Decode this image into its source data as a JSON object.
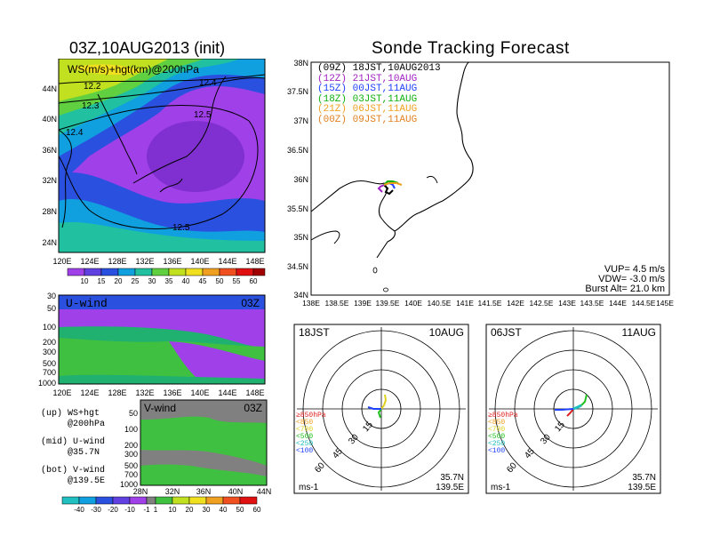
{
  "left": {
    "title": "03Z,10AUG2013 (init)",
    "ws_panel": {
      "label": "WS(m/s)+hgt(km)@200hPa",
      "lat_ticks": [
        "44N",
        "40N",
        "36N",
        "32N",
        "28N",
        "24N"
      ],
      "lon_ticks": [
        "120E",
        "124E",
        "128E",
        "132E",
        "136E",
        "140E",
        "144E",
        "148E"
      ],
      "contours": [
        "12.2",
        "12.3",
        "12.4",
        "12.4",
        "12.5",
        "12.5"
      ],
      "colorbar": [
        "10",
        "15",
        "20",
        "25",
        "30",
        "35",
        "40",
        "45",
        "50",
        "55",
        "60"
      ]
    },
    "u_panel": {
      "label": "U-wind",
      "time": "03Z",
      "p_ticks": [
        "30",
        "50",
        "100",
        "200",
        "300",
        "500",
        "700",
        "1000"
      ],
      "lon_ticks": [
        "120E",
        "124E",
        "128E",
        "132E",
        "136E",
        "140E",
        "144E",
        "148E"
      ]
    },
    "v_panel": {
      "label": "V-wind",
      "time": "03Z",
      "p_ticks": [
        "50",
        "100",
        "200",
        "300",
        "500",
        "700",
        "1000"
      ],
      "lat_ticks": [
        "28N",
        "32N",
        "36N",
        "40N",
        "44N"
      ]
    },
    "notes": [
      {
        "a": "(up)  WS+hgt",
        "b": "@200hPa"
      },
      {
        "a": "(mid) U-wind",
        "b": "@35.7N"
      },
      {
        "a": "(bot) V-wind",
        "b": "@139.5E"
      }
    ],
    "bottom_colorbar": [
      "-40",
      "-30",
      "-20",
      "-10",
      "-1",
      "1",
      "10",
      "20",
      "30",
      "40",
      "50",
      "60"
    ]
  },
  "right": {
    "title": "Sonde Tracking Forecast",
    "legend": [
      {
        "text": "(09Z)  18JST,10AUG2013",
        "color": "#000000"
      },
      {
        "text": "(12Z)  21JST,10AUG",
        "color": "#a020c0"
      },
      {
        "text": "(15Z)  00JST,11AUG",
        "color": "#2040ff"
      },
      {
        "text": "(18Z)  03JST,11AUG",
        "color": "#10b010"
      },
      {
        "text": "(21Z)  06JST,11AUG",
        "color": "#f0a020"
      },
      {
        "text": "(00Z)  09JST,11AUG",
        "color": "#e08020"
      }
    ],
    "lat_ticks": [
      "38N",
      "37.5N",
      "37N",
      "36.5N",
      "36N",
      "35.5N",
      "35N",
      "34.5N",
      "34N"
    ],
    "lon_ticks": [
      "138E",
      "138.5E",
      "139E",
      "139.5E",
      "140E",
      "140.5E",
      "141E",
      "141.5E",
      "142E",
      "142.5E",
      "143E",
      "143.5E",
      "144E",
      "144.5E",
      "145E"
    ],
    "params": [
      "VUP=  4.5 m/s",
      "VDW= -3.0 m/s",
      "Burst Alt= 21.0 km"
    ]
  },
  "hodographs": [
    {
      "left": "18JST",
      "right": "10AUG",
      "lat": "35.7N",
      "lon": "139.5E",
      "unit": "ms-1",
      "rings": [
        "15",
        "30",
        "45",
        "60"
      ]
    },
    {
      "left": "06JST",
      "right": "11AUG",
      "lat": "35.7N",
      "lon": "139.5E",
      "unit": "ms-1",
      "rings": [
        "15",
        "30",
        "45",
        "60"
      ]
    }
  ],
  "hodo_legend": [
    {
      "text": "≥850hPa",
      "color": "#e02020"
    },
    {
      "text": "<850",
      "color": "#f0a020"
    },
    {
      "text": "<700",
      "color": "#e0d020"
    },
    {
      "text": "<500",
      "color": "#20c020"
    },
    {
      "text": "<250",
      "color": "#20c0c0"
    },
    {
      "text": "<100",
      "color": "#2040ff"
    }
  ]
}
